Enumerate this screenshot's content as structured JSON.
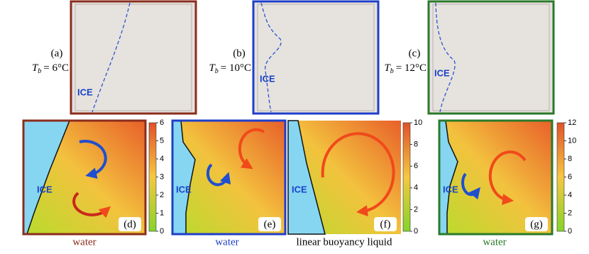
{
  "photos": [
    {
      "label": "(a)",
      "temperature": {
        "symbol": "T",
        "subscript": "b",
        "value": "= 6°C"
      },
      "ice": "ICE"
    },
    {
      "label": "(b)",
      "temperature": {
        "symbol": "T",
        "subscript": "b",
        "value": "= 10°C"
      },
      "ice": "ICE"
    },
    {
      "label": "(c)",
      "temperature": {
        "symbol": "T",
        "subscript": "b",
        "value": "= 12°C"
      },
      "ice": "ICE"
    }
  ],
  "fields": [
    {
      "label": "(d)",
      "ice": "ICE"
    },
    {
      "label": "(e)",
      "ice": "ICE"
    },
    {
      "label": "(f)",
      "ice": "ICE"
    },
    {
      "label": "(g)",
      "ice": "ICE"
    }
  ],
  "colorbars": [
    {
      "ticks": [
        0,
        1,
        2,
        3,
        4,
        5,
        6
      ]
    },
    {
      "ticks": [
        0,
        2,
        4,
        6,
        8,
        10
      ]
    },
    {
      "ticks": [
        0,
        2,
        4,
        6,
        8,
        10,
        12
      ]
    }
  ],
  "captions": [
    "water",
    "water",
    "linear buoyancy liquid",
    "water"
  ]
}
